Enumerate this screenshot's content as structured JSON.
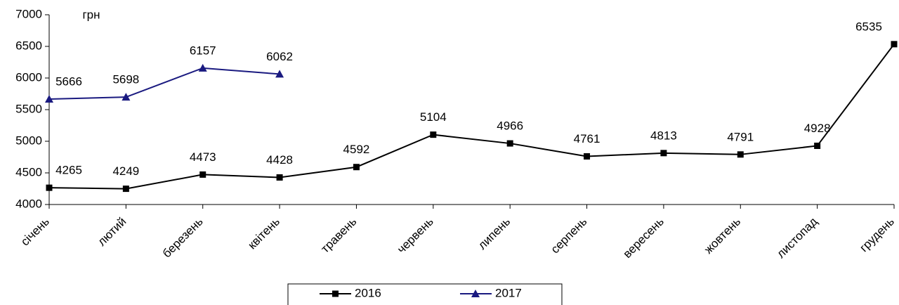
{
  "chart_data": {
    "type": "line",
    "y_unit_label": "грн",
    "categories": [
      "січень",
      "лютий",
      "березень",
      "квітень",
      "травень",
      "червень",
      "липень",
      "серпень",
      "вересень",
      "жовтень",
      "листопад",
      "грудень"
    ],
    "series": [
      {
        "name": "2016",
        "color": "#000000",
        "marker": "square",
        "values": [
          4265,
          4249,
          4473,
          4428,
          4592,
          5104,
          4966,
          4761,
          4813,
          4791,
          4928,
          6535
        ]
      },
      {
        "name": "2017",
        "color": "#1a1a80",
        "marker": "triangle",
        "values": [
          5666,
          5698,
          6157,
          6062,
          null,
          null,
          null,
          null,
          null,
          null,
          null,
          null
        ]
      }
    ],
    "ylim": [
      4000,
      7000
    ],
    "yticks": [
      4000,
      4500,
      5000,
      5500,
      6000,
      6500,
      7000
    ],
    "grid": false,
    "legend": "bottom"
  }
}
